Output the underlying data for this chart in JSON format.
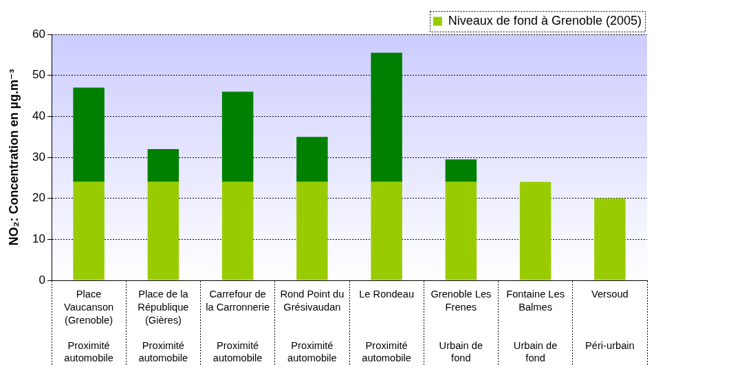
{
  "chart_data": {
    "type": "bar",
    "ylabel": "NO₂: Concentration en µg.m⁻³",
    "categories": [
      "Place Vaucanson (Grenoble)\nProximité automobile",
      "Place de la République (Gières)\nProximité automobile",
      "Carrefour de la Carronnerie\nProximité automobile",
      "Rond Point du Grésivaudan\nProximité automobile",
      "Le Rondeau\nProximité automobile",
      "Grenoble Les Frenes\nUrbain de fond",
      "Fontaine Les Balmes\nUrbain de fond",
      "Versoud\nPéri-urbain"
    ],
    "series": [
      {
        "name": "Niveaux de fond à Grenoble (2005)",
        "color": "#99cc00",
        "values": [
          24,
          24,
          24,
          24,
          24,
          24,
          24,
          20
        ]
      },
      {
        "color": "#008000",
        "values": [
          23,
          8,
          22,
          11,
          31.5,
          5.5,
          null,
          null
        ]
      }
    ],
    "stacked": true,
    "ylim": [
      0,
      60
    ],
    "yticks": [
      0,
      10,
      20,
      30,
      40,
      50,
      60
    ],
    "grid": "y",
    "legend": "top right"
  }
}
